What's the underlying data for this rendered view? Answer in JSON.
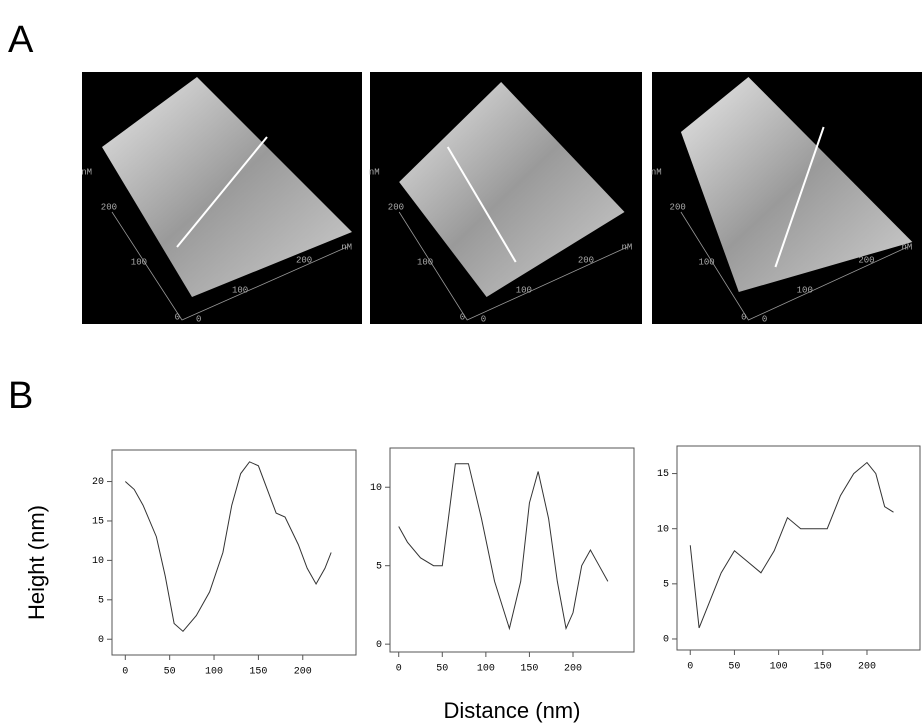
{
  "panel_labels": [
    "A",
    "B"
  ],
  "afm_images": [
    {
      "labels": [
        "nM",
        "200",
        "100",
        "0",
        "0",
        "100",
        "200",
        "nM"
      ]
    },
    {
      "labels": [
        "nM",
        "200",
        "100",
        "0",
        "0",
        "100",
        "200",
        "nM"
      ]
    },
    {
      "labels": [
        "nM",
        "200",
        "100",
        "0",
        "0",
        "100",
        "200",
        "nM"
      ]
    }
  ],
  "chart_data": [
    {
      "type": "line",
      "ylabel": "Height (nm)",
      "x": [
        0,
        10,
        20,
        35,
        45,
        55,
        65,
        80,
        95,
        110,
        120,
        130,
        140,
        150,
        160,
        170,
        180,
        195,
        205,
        215,
        225,
        232
      ],
      "series": [
        {
          "color": "#333333",
          "values": [
            20,
            19,
            17,
            13,
            8,
            2,
            1,
            3,
            6,
            11,
            17,
            21,
            22.5,
            22,
            19,
            16,
            15.5,
            12,
            9,
            7,
            9,
            11
          ]
        }
      ],
      "xlim": [
        -15,
        260
      ],
      "ylim": [
        -2,
        24
      ],
      "xticks": [
        0,
        50,
        100,
        150,
        200
      ],
      "yticks": [
        0,
        5,
        10,
        15,
        20
      ]
    },
    {
      "type": "line",
      "xlabel": "Distance (nm)",
      "x": [
        0,
        10,
        25,
        40,
        50,
        57,
        65,
        80,
        95,
        110,
        127,
        140,
        150,
        160,
        172,
        182,
        192,
        200,
        210,
        220,
        230,
        240
      ],
      "series": [
        {
          "color": "#333333",
          "values": [
            7.5,
            6.5,
            5.5,
            5,
            5,
            8,
            11.5,
            11.5,
            8,
            4,
            1,
            4,
            9,
            11,
            8,
            4,
            1,
            2,
            5,
            6,
            5,
            4
          ]
        }
      ],
      "xlim": [
        -10,
        270
      ],
      "ylim": [
        -0.5,
        12.5
      ],
      "xticks": [
        0,
        50,
        100,
        150,
        200
      ],
      "yticks": [
        0,
        5,
        10
      ]
    },
    {
      "type": "line",
      "x": [
        0,
        10,
        20,
        35,
        50,
        65,
        80,
        95,
        110,
        125,
        140,
        155,
        170,
        185,
        200,
        210,
        220,
        230
      ],
      "series": [
        {
          "color": "#333333",
          "values": [
            8.5,
            1,
            3,
            6,
            8,
            7,
            6,
            8,
            11,
            10,
            10,
            10,
            13,
            15,
            16,
            15,
            12,
            11.5
          ]
        }
      ],
      "xlim": [
        -15,
        260
      ],
      "ylim": [
        -1,
        17.5
      ],
      "xticks": [
        0,
        50,
        100,
        150,
        200
      ],
      "yticks": [
        0,
        5,
        10,
        15
      ]
    }
  ]
}
